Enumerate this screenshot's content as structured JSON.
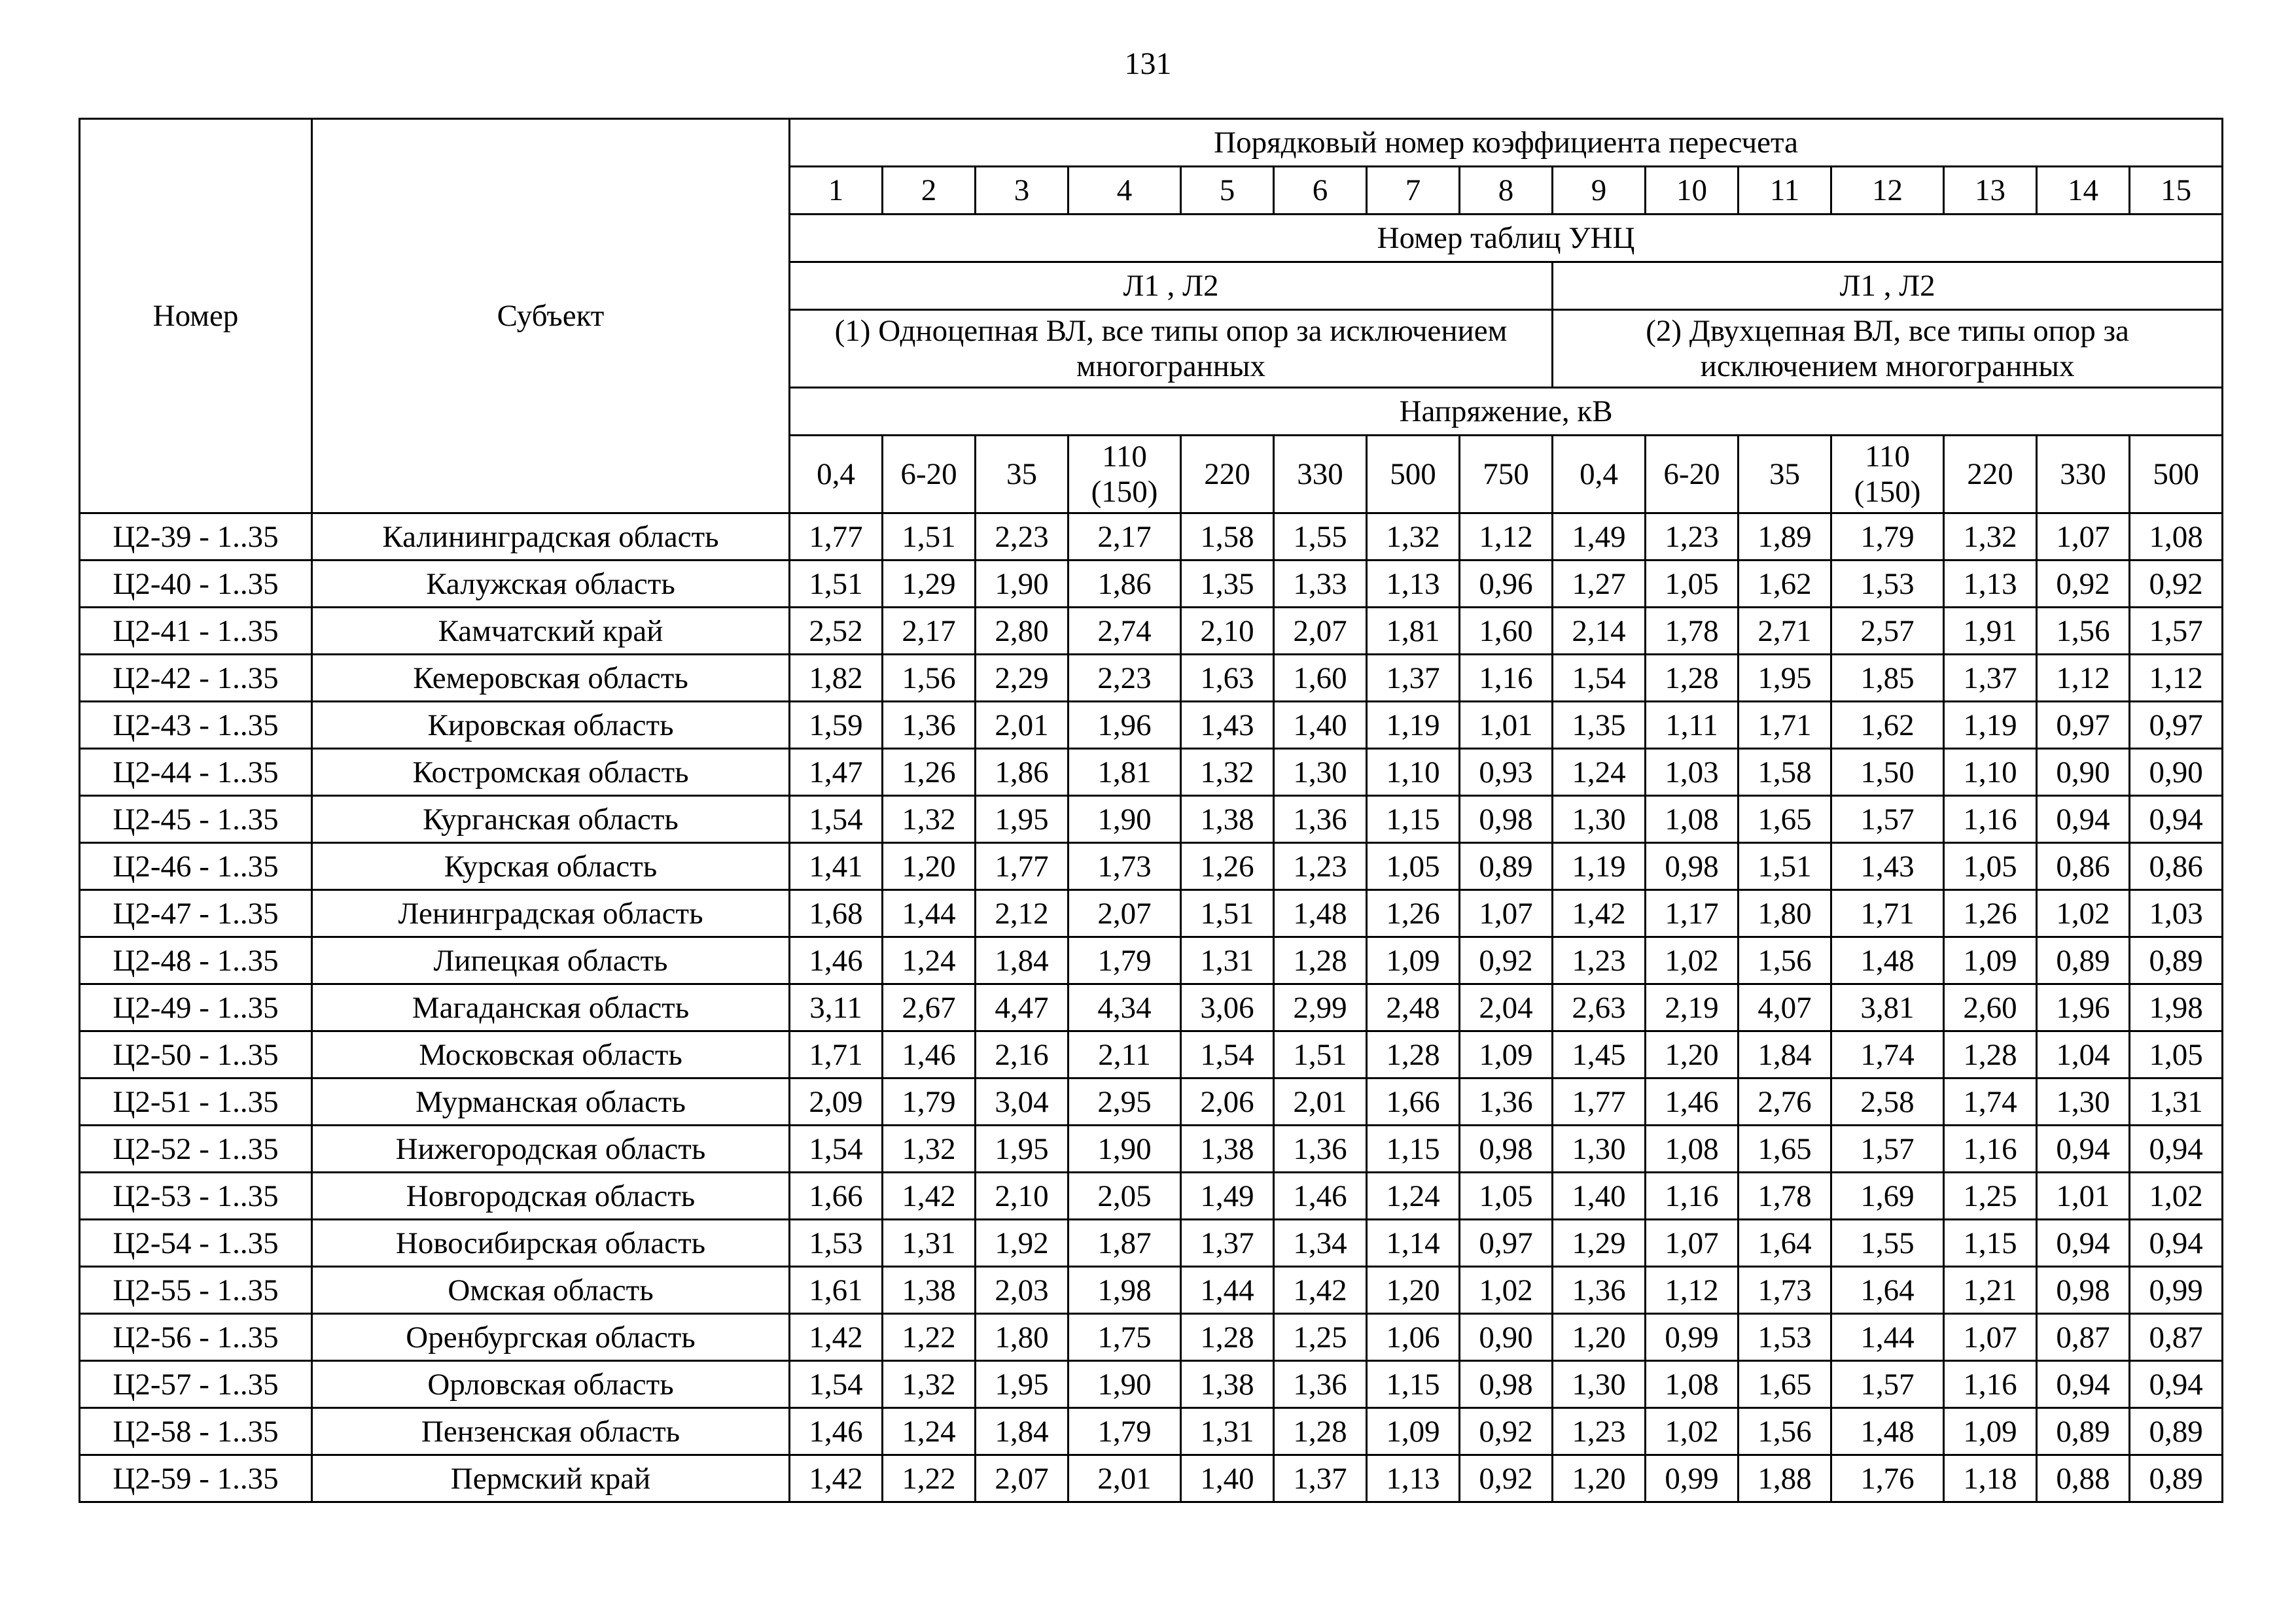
{
  "page": {
    "number": "131"
  },
  "table": {
    "header": {
      "nomer": "Номер",
      "subject": "Субъект",
      "title": "Порядковый номер коэффициента пересчета",
      "ordinal_numbers": [
        "1",
        "2",
        "3",
        "4",
        "5",
        "6",
        "7",
        "8",
        "9",
        "10",
        "11",
        "12",
        "13",
        "14",
        "15"
      ],
      "unc_tables": "Номер таблиц УНЦ",
      "group1_lines": "Л1 , Л2",
      "group2_lines": "Л1 , Л2",
      "group1_desc": "(1) Одноцепная ВЛ, все типы опор за исключением многогранных",
      "group2_desc": "(2) Двухцепная ВЛ, все типы опор за исключением многогранных",
      "voltage_title": "Напряжение, кВ",
      "voltage_values": [
        "0,4",
        "6-20",
        "35",
        "110 (150)",
        "220",
        "330",
        "500",
        "750",
        "0,4",
        "6-20",
        "35",
        "110 (150)",
        "220",
        "330",
        "500"
      ]
    },
    "rows": [
      {
        "code": "Ц2-39 - 1..35",
        "subject": "Калининградская область",
        "values": [
          "1,77",
          "1,51",
          "2,23",
          "2,17",
          "1,58",
          "1,55",
          "1,32",
          "1,12",
          "1,49",
          "1,23",
          "1,89",
          "1,79",
          "1,32",
          "1,07",
          "1,08"
        ]
      },
      {
        "code": "Ц2-40 - 1..35",
        "subject": "Калужская область",
        "values": [
          "1,51",
          "1,29",
          "1,90",
          "1,86",
          "1,35",
          "1,33",
          "1,13",
          "0,96",
          "1,27",
          "1,05",
          "1,62",
          "1,53",
          "1,13",
          "0,92",
          "0,92"
        ]
      },
      {
        "code": "Ц2-41 - 1..35",
        "subject": "Камчатский край",
        "values": [
          "2,52",
          "2,17",
          "2,80",
          "2,74",
          "2,10",
          "2,07",
          "1,81",
          "1,60",
          "2,14",
          "1,78",
          "2,71",
          "2,57",
          "1,91",
          "1,56",
          "1,57"
        ]
      },
      {
        "code": "Ц2-42 - 1..35",
        "subject": "Кемеровская область",
        "values": [
          "1,82",
          "1,56",
          "2,29",
          "2,23",
          "1,63",
          "1,60",
          "1,37",
          "1,16",
          "1,54",
          "1,28",
          "1,95",
          "1,85",
          "1,37",
          "1,12",
          "1,12"
        ]
      },
      {
        "code": "Ц2-43 - 1..35",
        "subject": "Кировская область",
        "values": [
          "1,59",
          "1,36",
          "2,01",
          "1,96",
          "1,43",
          "1,40",
          "1,19",
          "1,01",
          "1,35",
          "1,11",
          "1,71",
          "1,62",
          "1,19",
          "0,97",
          "0,97"
        ]
      },
      {
        "code": "Ц2-44 - 1..35",
        "subject": "Костромская область",
        "values": [
          "1,47",
          "1,26",
          "1,86",
          "1,81",
          "1,32",
          "1,30",
          "1,10",
          "0,93",
          "1,24",
          "1,03",
          "1,58",
          "1,50",
          "1,10",
          "0,90",
          "0,90"
        ]
      },
      {
        "code": "Ц2-45 - 1..35",
        "subject": "Курганская область",
        "values": [
          "1,54",
          "1,32",
          "1,95",
          "1,90",
          "1,38",
          "1,36",
          "1,15",
          "0,98",
          "1,30",
          "1,08",
          "1,65",
          "1,57",
          "1,16",
          "0,94",
          "0,94"
        ]
      },
      {
        "code": "Ц2-46 - 1..35",
        "subject": "Курская область",
        "values": [
          "1,41",
          "1,20",
          "1,77",
          "1,73",
          "1,26",
          "1,23",
          "1,05",
          "0,89",
          "1,19",
          "0,98",
          "1,51",
          "1,43",
          "1,05",
          "0,86",
          "0,86"
        ]
      },
      {
        "code": "Ц2-47 - 1..35",
        "subject": "Ленинградская область",
        "values": [
          "1,68",
          "1,44",
          "2,12",
          "2,07",
          "1,51",
          "1,48",
          "1,26",
          "1,07",
          "1,42",
          "1,17",
          "1,80",
          "1,71",
          "1,26",
          "1,02",
          "1,03"
        ]
      },
      {
        "code": "Ц2-48 - 1..35",
        "subject": "Липецкая область",
        "values": [
          "1,46",
          "1,24",
          "1,84",
          "1,79",
          "1,31",
          "1,28",
          "1,09",
          "0,92",
          "1,23",
          "1,02",
          "1,56",
          "1,48",
          "1,09",
          "0,89",
          "0,89"
        ]
      },
      {
        "code": "Ц2-49 - 1..35",
        "subject": "Магаданская область",
        "values": [
          "3,11",
          "2,67",
          "4,47",
          "4,34",
          "3,06",
          "2,99",
          "2,48",
          "2,04",
          "2,63",
          "2,19",
          "4,07",
          "3,81",
          "2,60",
          "1,96",
          "1,98"
        ]
      },
      {
        "code": "Ц2-50 - 1..35",
        "subject": "Московская область",
        "values": [
          "1,71",
          "1,46",
          "2,16",
          "2,11",
          "1,54",
          "1,51",
          "1,28",
          "1,09",
          "1,45",
          "1,20",
          "1,84",
          "1,74",
          "1,28",
          "1,04",
          "1,05"
        ]
      },
      {
        "code": "Ц2-51 - 1..35",
        "subject": "Мурманская область",
        "values": [
          "2,09",
          "1,79",
          "3,04",
          "2,95",
          "2,06",
          "2,01",
          "1,66",
          "1,36",
          "1,77",
          "1,46",
          "2,76",
          "2,58",
          "1,74",
          "1,30",
          "1,31"
        ]
      },
      {
        "code": "Ц2-52 - 1..35",
        "subject": "Нижегородская область",
        "values": [
          "1,54",
          "1,32",
          "1,95",
          "1,90",
          "1,38",
          "1,36",
          "1,15",
          "0,98",
          "1,30",
          "1,08",
          "1,65",
          "1,57",
          "1,16",
          "0,94",
          "0,94"
        ]
      },
      {
        "code": "Ц2-53 - 1..35",
        "subject": "Новгородская область",
        "values": [
          "1,66",
          "1,42",
          "2,10",
          "2,05",
          "1,49",
          "1,46",
          "1,24",
          "1,05",
          "1,40",
          "1,16",
          "1,78",
          "1,69",
          "1,25",
          "1,01",
          "1,02"
        ]
      },
      {
        "code": "Ц2-54 - 1..35",
        "subject": "Новосибирская область",
        "values": [
          "1,53",
          "1,31",
          "1,92",
          "1,87",
          "1,37",
          "1,34",
          "1,14",
          "0,97",
          "1,29",
          "1,07",
          "1,64",
          "1,55",
          "1,15",
          "0,94",
          "0,94"
        ]
      },
      {
        "code": "Ц2-55 - 1..35",
        "subject": "Омская область",
        "values": [
          "1,61",
          "1,38",
          "2,03",
          "1,98",
          "1,44",
          "1,42",
          "1,20",
          "1,02",
          "1,36",
          "1,12",
          "1,73",
          "1,64",
          "1,21",
          "0,98",
          "0,99"
        ]
      },
      {
        "code": "Ц2-56 - 1..35",
        "subject": "Оренбургская область",
        "values": [
          "1,42",
          "1,22",
          "1,80",
          "1,75",
          "1,28",
          "1,25",
          "1,06",
          "0,90",
          "1,20",
          "0,99",
          "1,53",
          "1,44",
          "1,07",
          "0,87",
          "0,87"
        ]
      },
      {
        "code": "Ц2-57 - 1..35",
        "subject": "Орловская область",
        "values": [
          "1,54",
          "1,32",
          "1,95",
          "1,90",
          "1,38",
          "1,36",
          "1,15",
          "0,98",
          "1,30",
          "1,08",
          "1,65",
          "1,57",
          "1,16",
          "0,94",
          "0,94"
        ]
      },
      {
        "code": "Ц2-58 - 1..35",
        "subject": "Пензенская область",
        "values": [
          "1,46",
          "1,24",
          "1,84",
          "1,79",
          "1,31",
          "1,28",
          "1,09",
          "0,92",
          "1,23",
          "1,02",
          "1,56",
          "1,48",
          "1,09",
          "0,89",
          "0,89"
        ]
      },
      {
        "code": "Ц2-59 - 1..35",
        "subject": "Пермский край",
        "values": [
          "1,42",
          "1,22",
          "2,07",
          "2,01",
          "1,40",
          "1,37",
          "1,13",
          "0,92",
          "1,20",
          "0,99",
          "1,88",
          "1,76",
          "1,18",
          "0,88",
          "0,89"
        ]
      }
    ]
  }
}
